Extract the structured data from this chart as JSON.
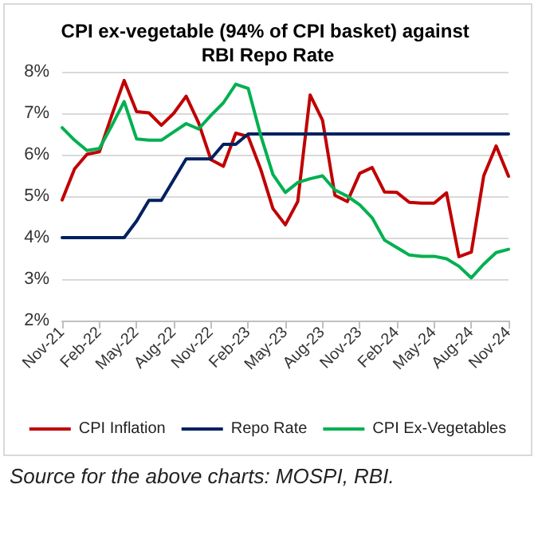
{
  "chart_data": {
    "type": "line",
    "title": "CPI ex-vegetable (94% of CPI basket) against RBI Repo Rate",
    "categories": [
      "Nov-21",
      null,
      null,
      "Feb-22",
      null,
      null,
      "May-22",
      null,
      null,
      "Aug-22",
      null,
      null,
      "Nov-22",
      null,
      null,
      "Feb-23",
      null,
      null,
      "May-23",
      null,
      null,
      "Aug-23",
      null,
      null,
      "Nov-23",
      null,
      null,
      "Feb-24",
      null,
      null,
      "May-24",
      null,
      null,
      "Aug-24",
      null,
      null,
      "Nov-24"
    ],
    "series": [
      {
        "name": "CPI Inflation",
        "color": "#c00000",
        "values": [
          4.91,
          5.66,
          6.01,
          6.07,
          6.95,
          7.79,
          7.04,
          7.01,
          6.71,
          7.0,
          7.41,
          6.77,
          5.88,
          5.72,
          6.52,
          6.44,
          5.66,
          4.7,
          4.31,
          4.87,
          7.44,
          6.83,
          5.02,
          4.87,
          5.55,
          5.69,
          5.1,
          5.09,
          4.85,
          4.83,
          4.83,
          5.08,
          3.54,
          3.65,
          5.49,
          6.21,
          5.48
        ]
      },
      {
        "name": "Repo Rate",
        "color": "#002060",
        "values": [
          4.0,
          4.0,
          4.0,
          4.0,
          4.0,
          4.0,
          4.4,
          4.9,
          4.9,
          5.4,
          5.9,
          5.9,
          5.9,
          6.25,
          6.25,
          6.5,
          6.5,
          6.5,
          6.5,
          6.5,
          6.5,
          6.5,
          6.5,
          6.5,
          6.5,
          6.5,
          6.5,
          6.5,
          6.5,
          6.5,
          6.5,
          6.5,
          6.5,
          6.5,
          6.5,
          6.5,
          6.5
        ]
      },
      {
        "name": "CPI Ex-Vegetables",
        "color": "#00b050",
        "values": [
          6.65,
          6.35,
          6.1,
          6.15,
          6.7,
          7.28,
          6.38,
          6.35,
          6.35,
          6.55,
          6.75,
          6.62,
          6.95,
          7.25,
          7.7,
          7.6,
          6.48,
          5.52,
          5.09,
          5.33,
          5.42,
          5.49,
          5.15,
          5.0,
          4.79,
          4.48,
          3.94,
          3.76,
          3.58,
          3.55,
          3.55,
          3.49,
          3.31,
          3.03,
          3.36,
          3.64,
          3.72
        ]
      }
    ],
    "ylim": [
      2,
      8
    ],
    "yticks": [
      {
        "value": 2,
        "label": "2%"
      },
      {
        "value": 3,
        "label": "3%"
      },
      {
        "value": 4,
        "label": "4%"
      },
      {
        "value": 5,
        "label": "5%"
      },
      {
        "value": 6,
        "label": "6%"
      },
      {
        "value": 7,
        "label": "7%"
      },
      {
        "value": 8,
        "label": "8%"
      }
    ],
    "grid": "y",
    "legend": "bottom",
    "marker": "none",
    "line_style": "solid",
    "annotations": [
      "Source for the above charts: MOSPI, RBI."
    ]
  }
}
